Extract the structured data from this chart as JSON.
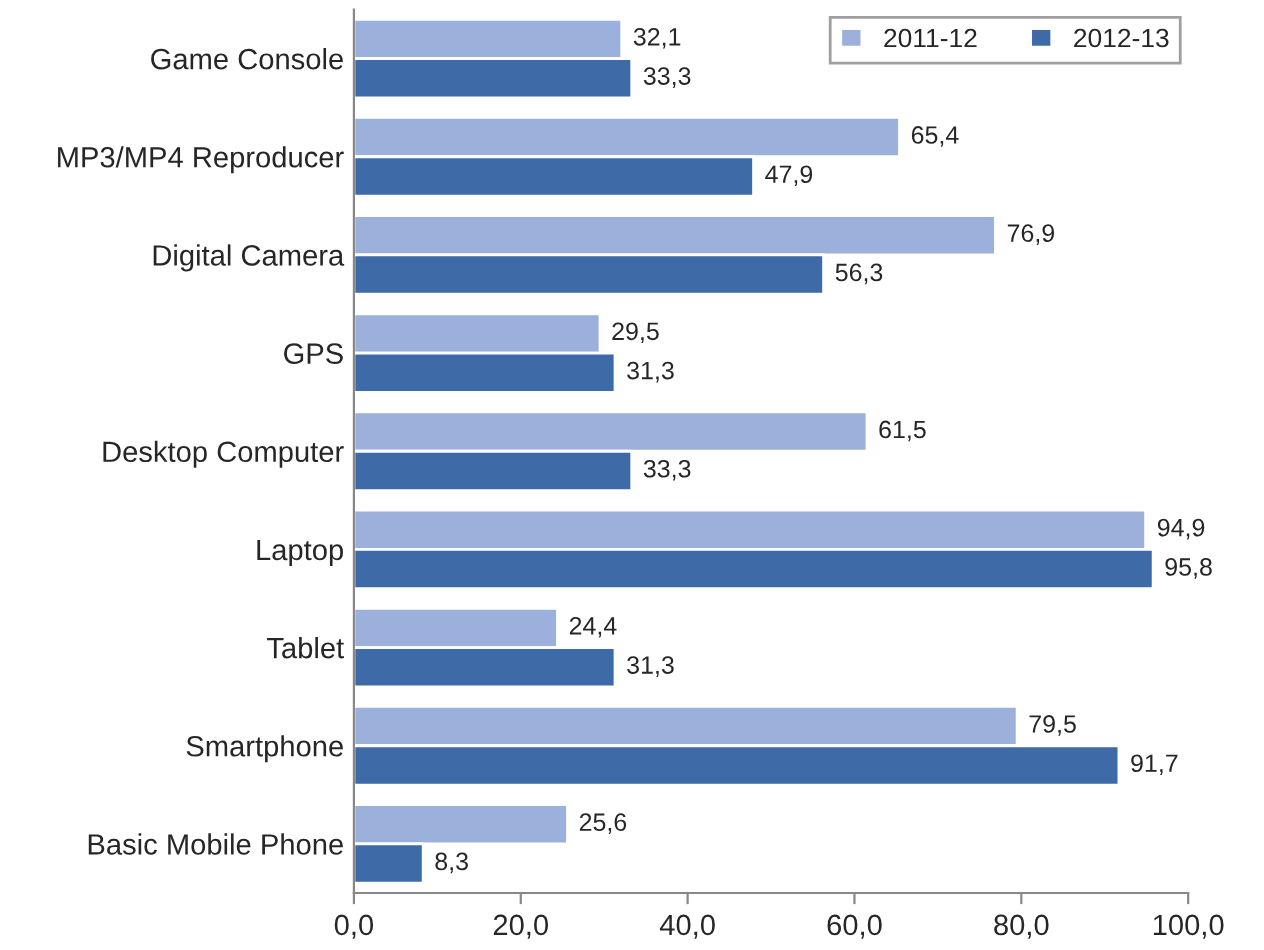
{
  "chart_data": {
    "type": "bar",
    "orientation": "horizontal",
    "categories": [
      "Game Console",
      "MP3/MP4 Reproducer",
      "Digital Camera",
      "GPS",
      "Desktop Computer",
      "Laptop",
      "Tablet",
      "Smartphone",
      "Basic Mobile Phone"
    ],
    "series": [
      {
        "name": "2011-12",
        "color": "#9bb1db",
        "values": [
          32.1,
          65.4,
          76.9,
          29.5,
          61.5,
          94.9,
          24.4,
          79.5,
          25.6
        ],
        "value_labels": [
          "32,1",
          "65,4",
          "76,9",
          "29,5",
          "61,5",
          "94,9",
          "24,4",
          "79,5",
          "25,6"
        ]
      },
      {
        "name": "2012-13",
        "color": "#3e6aa8",
        "values": [
          33.3,
          47.9,
          56.3,
          31.3,
          33.3,
          95.8,
          31.3,
          91.7,
          8.3
        ],
        "value_labels": [
          "33,3",
          "47,9",
          "56,3",
          "31,3",
          "33,3",
          "95,8",
          "31,3",
          "91,7",
          "8,3"
        ]
      }
    ],
    "xlim": [
      0,
      100
    ],
    "xticks": [
      {
        "value": 0,
        "label": "0,0"
      },
      {
        "value": 20,
        "label": "20,0"
      },
      {
        "value": 40,
        "label": "40,0"
      },
      {
        "value": 60,
        "label": "60,0"
      },
      {
        "value": 80,
        "label": "80,0"
      },
      {
        "value": 100,
        "label": "100,0"
      }
    ],
    "grid": false,
    "legend": "top right"
  }
}
